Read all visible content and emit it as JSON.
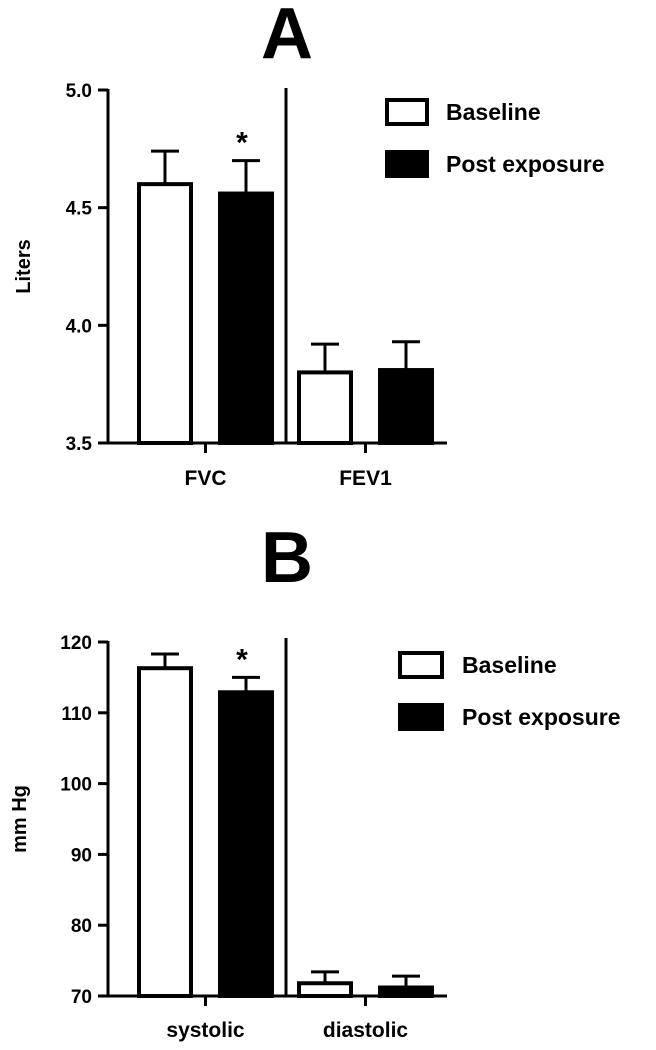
{
  "chart_data": [
    {
      "type": "bar",
      "panel": "A",
      "ylabel": "Liters",
      "ylim": [
        3.5,
        5.0
      ],
      "yticks": [
        "3.5",
        "4.0",
        "4.5",
        "5.0"
      ],
      "categories": [
        "FVC",
        "FEV1"
      ],
      "series": [
        {
          "name": "Baseline",
          "color": "#ffffff",
          "values": [
            4.6,
            3.8
          ],
          "errors": [
            0.14,
            0.12
          ]
        },
        {
          "name": "Post exposure",
          "color": "#000000",
          "values": [
            4.56,
            3.81
          ],
          "errors": [
            0.14,
            0.12
          ]
        }
      ],
      "annotations": [
        {
          "text": "*",
          "category": "FVC",
          "series": "Post exposure"
        }
      ],
      "legend_position": "top-right"
    },
    {
      "type": "bar",
      "panel": "B",
      "ylabel": "mm Hg",
      "ylim": [
        70,
        120
      ],
      "yticks": [
        "70",
        "80",
        "90",
        "100",
        "110",
        "120"
      ],
      "categories": [
        "systolic",
        "diastolic"
      ],
      "series": [
        {
          "name": "Baseline",
          "color": "#ffffff",
          "values": [
            116.3,
            71.8
          ],
          "errors": [
            2.0,
            1.6
          ]
        },
        {
          "name": "Post exposure",
          "color": "#000000",
          "values": [
            112.9,
            71.2
          ],
          "errors": [
            2.1,
            1.6
          ]
        }
      ],
      "annotations": [
        {
          "text": "*",
          "category": "systolic",
          "series": "Post exposure"
        }
      ],
      "legend_position": "top-right"
    }
  ]
}
